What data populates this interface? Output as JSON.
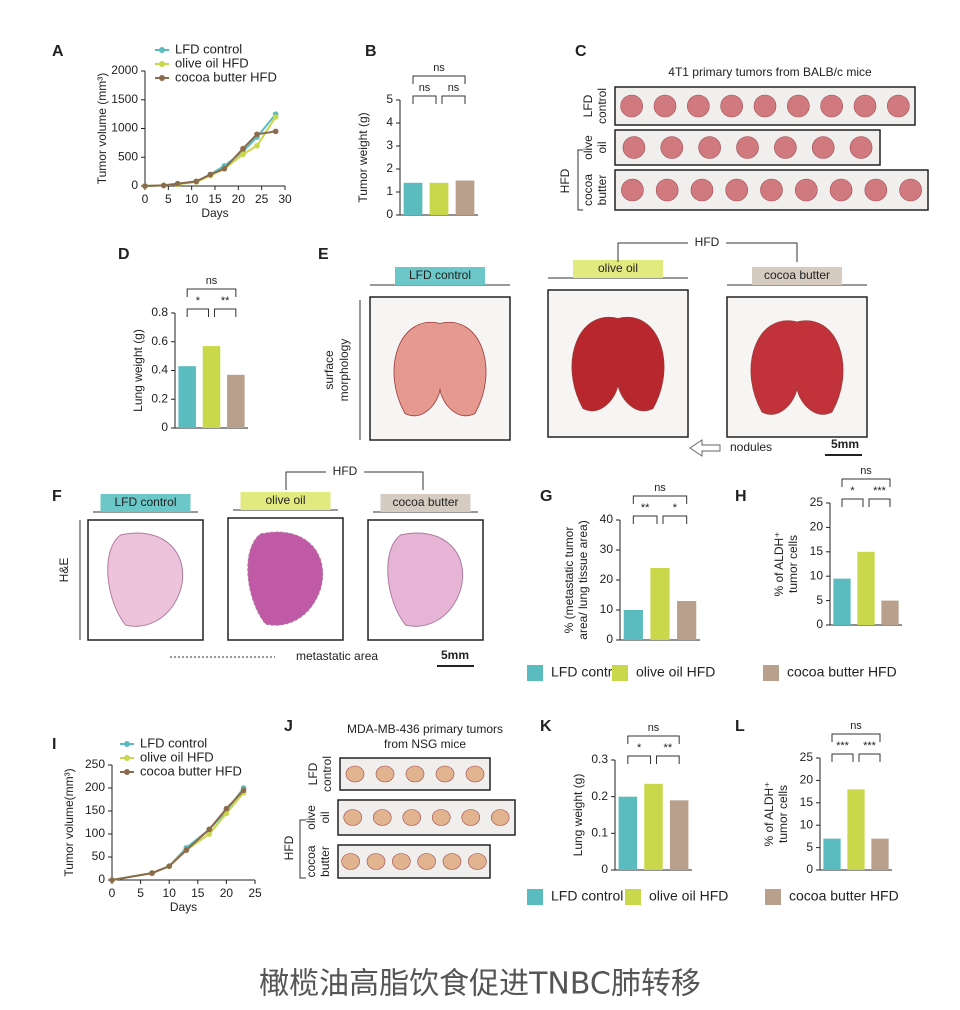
{
  "panel_letters": [
    "A",
    "B",
    "C",
    "D",
    "E",
    "F",
    "G",
    "H",
    "I",
    "J",
    "K",
    "L"
  ],
  "chart_data": [
    {
      "type": "line",
      "xlabel": "Days",
      "ylabel": "Tumor volume (mm³)",
      "xlim": [
        0,
        30
      ],
      "xticks": [
        0,
        5,
        10,
        15,
        20,
        25,
        30
      ],
      "ylim": [
        0,
        2000
      ],
      "yticks": [
        0,
        500,
        1000,
        1500,
        2000
      ],
      "x": [
        0,
        4,
        7,
        11,
        14,
        17,
        21,
        24,
        28
      ],
      "series": [
        {
          "name": "LFD control",
          "color": "#5bbcc0",
          "values": [
            0,
            10,
            40,
            80,
            200,
            350,
            600,
            850,
            1250
          ]
        },
        {
          "name": "olive oil HFD",
          "color": "#c9d84a",
          "values": [
            0,
            10,
            30,
            70,
            180,
            300,
            550,
            700,
            1200
          ]
        },
        {
          "name": "cocoa butter HFD",
          "color": "#8c6a4c",
          "values": [
            0,
            10,
            40,
            80,
            200,
            300,
            650,
            900,
            950
          ]
        }
      ]
    },
    {
      "type": "bar",
      "ylabel": "Tumor weight (g)",
      "ylim": [
        0,
        5
      ],
      "yticks": [
        0,
        1,
        2,
        3,
        4,
        5
      ],
      "categories": [
        null,
        null,
        null
      ],
      "values": [
        1.4,
        1.4,
        1.5
      ],
      "colors": [
        "#5bbcc0",
        "#c9d84a",
        "#b9a08c"
      ],
      "annotations": [
        "ns",
        "ns",
        "ns"
      ]
    },
    {
      "type": "bar",
      "ylabel": "Lung weight (g)",
      "ylim": [
        0,
        0.8
      ],
      "yticks": [
        0,
        0.2,
        0.4,
        0.6,
        0.8
      ],
      "categories": [
        null,
        null,
        null
      ],
      "values": [
        0.43,
        0.57,
        0.37
      ],
      "colors": [
        "#5bbcc0",
        "#c9d84a",
        "#b9a08c"
      ],
      "annotations": [
        "ns",
        "*",
        "**"
      ]
    },
    {
      "type": "bar",
      "ylabel": [
        "% (metastatic tumor",
        "area/ lung tissue area)"
      ],
      "ylim": [
        0,
        40
      ],
      "yticks": [
        0,
        10,
        20,
        30,
        40
      ],
      "categories": [
        null,
        null,
        null
      ],
      "values": [
        10,
        24,
        13
      ],
      "colors": [
        "#5bbcc0",
        "#c9d84a",
        "#b9a08c"
      ],
      "annotations": [
        "ns",
        "**",
        "*"
      ]
    },
    {
      "type": "bar",
      "ylabel": [
        "% of ALDH⁺",
        "tumor cells"
      ],
      "ylim": [
        0,
        25
      ],
      "yticks": [
        0,
        5,
        10,
        15,
        20,
        25
      ],
      "categories": [
        null,
        null,
        null
      ],
      "values": [
        9.5,
        15,
        5
      ],
      "colors": [
        "#5bbcc0",
        "#c9d84a",
        "#b9a08c"
      ],
      "annotations": [
        "ns",
        "*",
        "***"
      ]
    },
    {
      "type": "line",
      "xlabel": "Days",
      "ylabel": "Tumor volume(mm³)",
      "xlim": [
        0,
        25
      ],
      "xticks": [
        0,
        5,
        10,
        15,
        20,
        25
      ],
      "ylim": [
        0,
        250
      ],
      "yticks": [
        0,
        50,
        100,
        150,
        200,
        250
      ],
      "x": [
        0,
        7,
        10,
        13,
        17,
        20,
        23
      ],
      "series": [
        {
          "name": "LFD control",
          "color": "#5bbcc0",
          "values": [
            0,
            15,
            30,
            70,
            110,
            150,
            200
          ]
        },
        {
          "name": "olive oil HFD",
          "color": "#c9d84a",
          "values": [
            0,
            15,
            30,
            65,
            100,
            145,
            190
          ]
        },
        {
          "name": "cocoa butter HFD",
          "color": "#8c6a4c",
          "values": [
            0,
            15,
            30,
            65,
            110,
            155,
            195
          ]
        }
      ]
    },
    {
      "type": "bar",
      "ylabel": "Lung weight (g)",
      "ylim": [
        0,
        0.3
      ],
      "yticks": [
        0,
        0.1,
        0.2,
        0.3
      ],
      "categories": [
        null,
        null,
        null
      ],
      "values": [
        0.2,
        0.235,
        0.19
      ],
      "colors": [
        "#5bbcc0",
        "#c9d84a",
        "#b9a08c"
      ],
      "annotations": [
        "ns",
        "*",
        "**"
      ]
    },
    {
      "type": "bar",
      "ylabel": [
        "% of ALDH⁺",
        "tumor cells"
      ],
      "ylim": [
        0,
        25
      ],
      "yticks": [
        0,
        5,
        10,
        15,
        20,
        25
      ],
      "categories": [
        null,
        null,
        null
      ],
      "values": [
        7,
        18,
        7
      ],
      "colors": [
        "#5bbcc0",
        "#c9d84a",
        "#b9a08c"
      ],
      "annotations": [
        "ns",
        "***",
        "***"
      ]
    }
  ],
  "legends": [
    {
      "items": [
        "LFD control",
        "olive oil HFD",
        "cocoa butter HFD"
      ],
      "colors": [
        "#5bbcc0",
        "#c9d84a",
        "#b9a08c"
      ]
    },
    {
      "items": [
        "LFD control",
        "olive oil HFD",
        "cocoa butter HFD"
      ],
      "colors": [
        "#5bbcc0",
        "#c9d84a",
        "#b9a08c"
      ]
    }
  ],
  "photos": {
    "C": {
      "title": "4T1 primary tumors from BALB/c mice",
      "rows": [
        [
          "LFD",
          "control"
        ],
        [
          "olive",
          "oil"
        ],
        [
          "cocoa",
          "butter"
        ]
      ],
      "group": "HFD"
    },
    "E": {
      "group": "HFD",
      "labels": [
        "LFD control",
        "olive oil",
        "cocoa butter"
      ],
      "row": [
        "surface",
        "morphology"
      ],
      "arrow": "nodules",
      "scale": "5mm"
    },
    "F": {
      "group": "HFD",
      "labels": [
        "LFD control",
        "olive oil",
        "cocoa butter"
      ],
      "row": "H&E",
      "legend": "metastatic area",
      "scale": "5mm"
    },
    "J": {
      "title": [
        "MDA-MB-436 primary tumors",
        "from NSG mice"
      ],
      "rows": [
        [
          "LFD",
          "control"
        ],
        [
          "olive",
          "oil"
        ],
        [
          "cocoa",
          "butter"
        ]
      ],
      "group": "HFD"
    }
  },
  "caption": "橄榄油高脂饮食促进TNBC肺转移"
}
